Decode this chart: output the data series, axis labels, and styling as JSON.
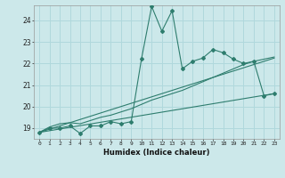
{
  "xlabel": "Humidex (Indice chaleur)",
  "bg_color": "#cce8ea",
  "grid_color": "#b0d8dc",
  "line_color": "#2e7d6e",
  "xlim": [
    -0.5,
    23.5
  ],
  "ylim": [
    18.5,
    24.7
  ],
  "yticks": [
    19,
    20,
    21,
    22,
    23,
    24
  ],
  "xticks": [
    0,
    1,
    2,
    3,
    4,
    5,
    6,
    7,
    8,
    9,
    10,
    11,
    12,
    13,
    14,
    15,
    16,
    17,
    18,
    19,
    20,
    21,
    22,
    23
  ],
  "series1_x": [
    0,
    1,
    2,
    3,
    4,
    5,
    6,
    7,
    8,
    9,
    10,
    11,
    12,
    13,
    14,
    15,
    16,
    17,
    18,
    19,
    20,
    21,
    22,
    23
  ],
  "series1_y": [
    18.8,
    19.0,
    19.0,
    19.1,
    18.75,
    19.1,
    19.1,
    19.3,
    19.2,
    19.3,
    22.2,
    24.65,
    23.5,
    24.45,
    21.75,
    22.1,
    22.25,
    22.65,
    22.5,
    22.2,
    22.0,
    22.1,
    20.5,
    20.6
  ],
  "series2_x": [
    0,
    1,
    2,
    3,
    4,
    5,
    6,
    7,
    8,
    9,
    10,
    11,
    12,
    13,
    14,
    15,
    16,
    17,
    18,
    19,
    20,
    21,
    22,
    23
  ],
  "series2_y": [
    18.8,
    19.05,
    19.2,
    19.25,
    19.2,
    19.35,
    19.5,
    19.6,
    19.75,
    19.9,
    20.1,
    20.3,
    20.45,
    20.6,
    20.75,
    20.95,
    21.15,
    21.35,
    21.55,
    21.75,
    21.95,
    22.1,
    22.2,
    22.3
  ],
  "series3_x": [
    0,
    23
  ],
  "series3_y": [
    18.8,
    22.25
  ],
  "series4_x": [
    0,
    23
  ],
  "series4_y": [
    18.8,
    20.6
  ]
}
